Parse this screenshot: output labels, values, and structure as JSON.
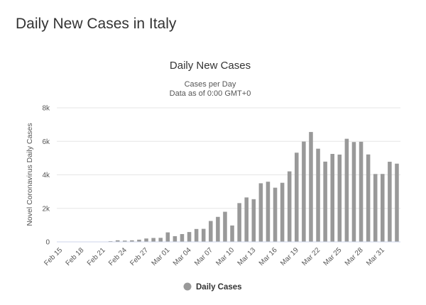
{
  "page": {
    "title": "Daily New Cases in Italy"
  },
  "chart_data": {
    "type": "bar",
    "title": "Daily New Cases",
    "subtitle_lines": [
      "Cases per Day",
      "Data as of 0:00 GMT+0"
    ],
    "ylabel": "Novel Coronavirus Daily Cases",
    "xlabel": "",
    "ylim": [
      0,
      8000
    ],
    "yticks": [
      0,
      2000,
      4000,
      6000,
      8000
    ],
    "ytick_labels": [
      "0",
      "2k",
      "4k",
      "6k",
      "8k"
    ],
    "xtick_labels": [
      "Feb 15",
      "Feb 18",
      "Feb 21",
      "Feb 24",
      "Feb 27",
      "Mar 01",
      "Mar 04",
      "Mar 07",
      "Mar 10",
      "Mar 13",
      "Mar 16",
      "Mar 19",
      "Mar 22",
      "Mar 25",
      "Mar 28",
      "Mar 31"
    ],
    "grid": true,
    "legend_position": "bottom-center",
    "bar_color": "#999999",
    "categories": [
      "Feb 15",
      "Feb 16",
      "Feb 17",
      "Feb 18",
      "Feb 19",
      "Feb 20",
      "Feb 21",
      "Feb 22",
      "Feb 23",
      "Feb 24",
      "Feb 25",
      "Feb 26",
      "Feb 27",
      "Feb 28",
      "Feb 29",
      "Mar 01",
      "Mar 02",
      "Mar 03",
      "Mar 04",
      "Mar 05",
      "Mar 06",
      "Mar 07",
      "Mar 08",
      "Mar 09",
      "Mar 10",
      "Mar 11",
      "Mar 12",
      "Mar 13",
      "Mar 14",
      "Mar 15",
      "Mar 16",
      "Mar 17",
      "Mar 18",
      "Mar 19",
      "Mar 20",
      "Mar 21",
      "Mar 22",
      "Mar 23",
      "Mar 24",
      "Mar 25",
      "Mar 26",
      "Mar 27",
      "Mar 28",
      "Mar 29",
      "Mar 30",
      "Mar 31",
      "Apr 01",
      "Apr 02"
    ],
    "series": [
      {
        "name": "Daily Cases",
        "values": [
          0,
          0,
          0,
          0,
          0,
          0,
          17,
          42,
          93,
          74,
          93,
          131,
          202,
          233,
          240,
          566,
          342,
          466,
          587,
          769,
          778,
          1247,
          1492,
          1797,
          977,
          2313,
          2651,
          2547,
          3497,
          3590,
          3233,
          3526,
          4207,
          5322,
          5986,
          6557,
          5560,
          4789,
          5249,
          5210,
          6153,
          5959,
          5974,
          5217,
          4050,
          4053,
          4782,
          4668
        ]
      }
    ]
  }
}
